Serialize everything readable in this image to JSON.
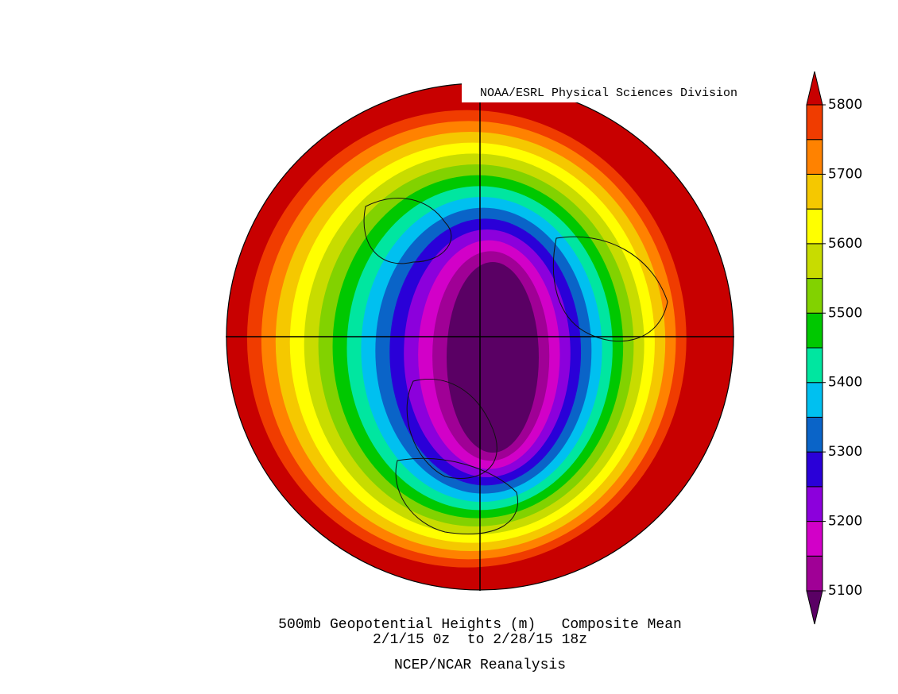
{
  "header": {
    "source": "NOAA/ESRL Physical Sciences Division"
  },
  "caption": {
    "lines": [
      "500mb Geopotential Heights (m)   Composite Mean",
      "2/1/15 0z  to 2/28/15 18z",
      "NCEP/NCAR Reanalysis"
    ]
  },
  "colorbar": {
    "lim": [
      5100,
      5800
    ],
    "ticks": [
      5100,
      5200,
      5300,
      5400,
      5500,
      5600,
      5700,
      5800
    ],
    "levels": [
      5100,
      5150,
      5200,
      5250,
      5300,
      5350,
      5400,
      5450,
      5500,
      5550,
      5600,
      5650,
      5700,
      5750,
      5800
    ],
    "colors": [
      "#5a0064",
      "#a00096",
      "#d200c8",
      "#8c00dc",
      "#2a00d8",
      "#0a64c8",
      "#00c0f0",
      "#00e6a0",
      "#00c800",
      "#82d200",
      "#c8dc00",
      "#ffff00",
      "#f5c800",
      "#ff8200",
      "#f03c00",
      "#c80000"
    ]
  }
}
